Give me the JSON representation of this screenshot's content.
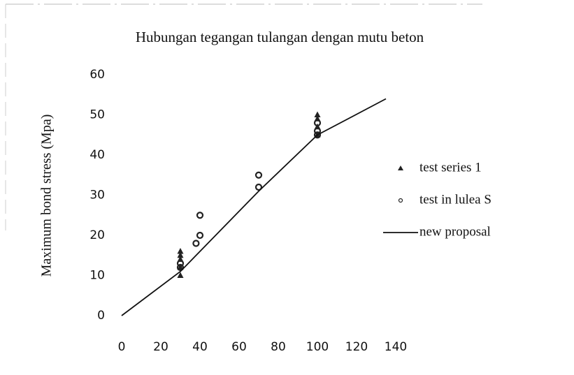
{
  "chart_data": {
    "type": "scatter",
    "title": "Hubungan tegangan tulangan dengan mutu beton",
    "y_label": "Maximum bond stress (Mpa)",
    "xlim": [
      0,
      140
    ],
    "xticks": [
      0,
      20,
      40,
      60,
      80,
      100,
      120,
      140
    ],
    "ylim": [
      0,
      60
    ],
    "yticks": [
      0,
      10,
      20,
      30,
      40,
      50,
      60
    ],
    "grid": false,
    "legend": "right",
    "series": [
      {
        "name": "test series 1",
        "color": "#222222",
        "mark": "triangle",
        "x": [
          30,
          30,
          30,
          30,
          30,
          100,
          100,
          100,
          100
        ],
        "values": [
          10,
          12,
          14,
          15,
          16,
          45,
          47,
          49,
          50
        ]
      },
      {
        "name": "test in lulea S",
        "color": "#222222",
        "mark": "circle",
        "x": [
          30,
          30,
          38,
          40,
          40,
          70,
          70,
          100,
          100,
          100
        ],
        "values": [
          12,
          13,
          18,
          20,
          25,
          32,
          35,
          45,
          46,
          48
        ]
      },
      {
        "name": "new proposal",
        "color": "#111111",
        "mark": "line",
        "x": [
          0,
          30,
          70,
          100,
          135
        ],
        "values": [
          0,
          11,
          31,
          45,
          54
        ]
      }
    ]
  }
}
